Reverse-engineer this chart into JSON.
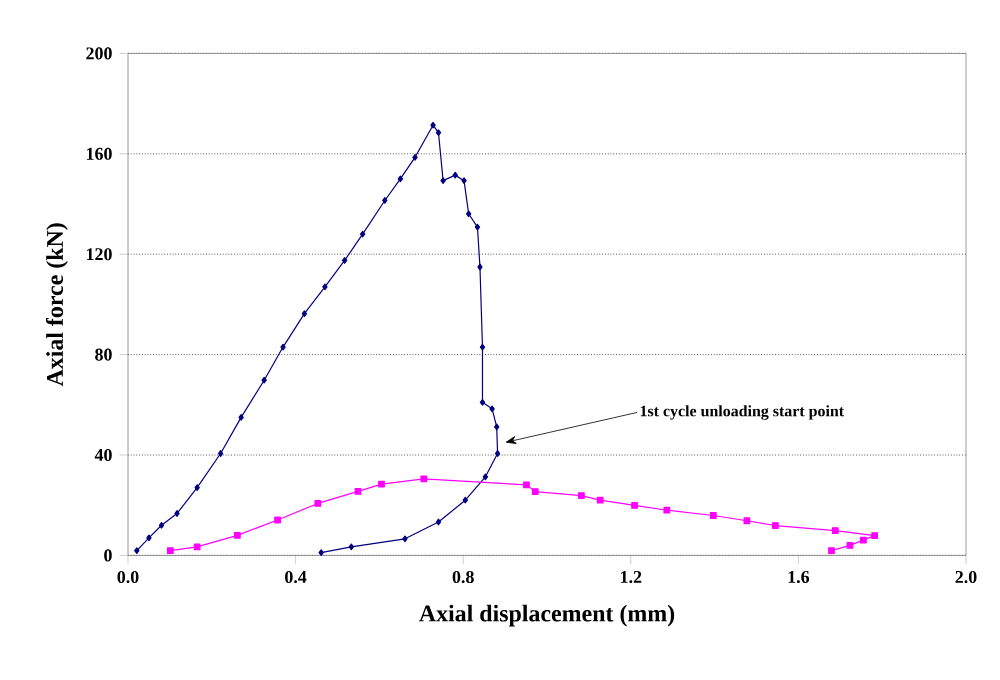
{
  "chart_data": {
    "type": "line",
    "xlabel": "Axial displacement (mm)",
    "ylabel": "Axial force (kN)",
    "xlim": [
      0,
      2
    ],
    "ylim": [
      0,
      200
    ],
    "xticks": [
      {
        "value": 0,
        "label": "0.0"
      },
      0.4,
      0.8,
      1.2,
      1.6,
      {
        "value": 2,
        "label": "2.0"
      }
    ],
    "yticks": [
      0,
      40,
      80,
      120,
      160,
      200
    ],
    "grid": "y",
    "annotations": [
      {
        "text": "1st cycle unloading start point",
        "x": 0.9,
        "y": 45
      }
    ],
    "series": [
      {
        "color": "#000080",
        "marker": "diamond",
        "x": [
          0.021,
          0.05,
          0.08,
          0.117,
          0.165,
          0.221,
          0.27,
          0.325,
          0.37,
          0.421,
          0.47,
          0.517,
          0.56,
          0.613,
          0.65,
          0.685,
          0.728,
          0.741,
          0.752,
          0.781,
          0.802,
          0.813,
          0.834,
          0.84,
          0.846,
          0.846,
          0.869,
          0.88,
          0.882,
          0.853,
          0.805,
          0.741,
          0.661,
          0.533,
          0.461
        ],
        "values": [
          1.9,
          7,
          12,
          16.7,
          27,
          40.6,
          55,
          69.8,
          83,
          96.3,
          107,
          117.5,
          128,
          141.4,
          150,
          158.6,
          171.4,
          168.4,
          149.3,
          151.5,
          149.3,
          136.1,
          130.8,
          114.9,
          83,
          61,
          58.4,
          51.2,
          40.6,
          31.3,
          22,
          13.3,
          6.6,
          3.4,
          1.1
        ]
      },
      {
        "color": "#ff00ff",
        "marker": "square",
        "x": [
          0.101,
          0.165,
          0.261,
          0.357,
          0.453,
          0.549,
          0.605,
          0.706,
          0.951,
          0.972,
          1.082,
          1.127,
          1.209,
          1.286,
          1.397,
          1.477,
          1.545,
          1.688,
          1.782,
          1.755,
          1.723,
          1.679
        ],
        "values": [
          1.9,
          3.4,
          8,
          14.1,
          20.7,
          25.5,
          28.4,
          30.5,
          28.1,
          25.4,
          23.8,
          22,
          19.9,
          18,
          15.9,
          13.8,
          11.9,
          9.9,
          7.9,
          6.1,
          4,
          1.9
        ]
      }
    ]
  }
}
